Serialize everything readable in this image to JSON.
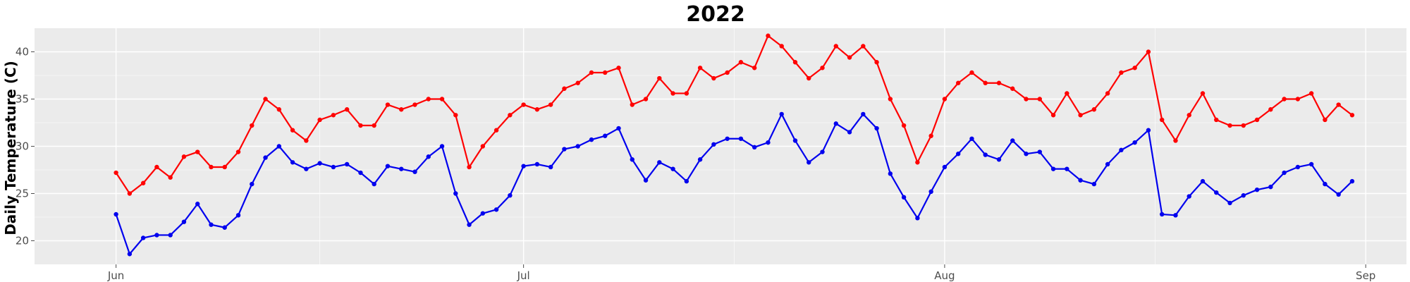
{
  "chart_data": {
    "type": "line",
    "title": "2022",
    "xlabel": "",
    "ylabel": "Daily Temperature (C)",
    "x_start": "2022-06-01",
    "x_ticks": [
      {
        "date": "2022-06-01",
        "label": "Jun"
      },
      {
        "date": "2022-07-01",
        "label": "Jul"
      },
      {
        "date": "2022-08-01",
        "label": "Aug"
      },
      {
        "date": "2022-09-01",
        "label": "Sep"
      }
    ],
    "xlim": [
      "2022-05-26",
      "2022-09-04"
    ],
    "ylim": [
      17.5,
      42.5
    ],
    "y_ticks": [
      20,
      25,
      30,
      35,
      40
    ],
    "grid": true,
    "legend": "none",
    "series": [
      {
        "color": "#ff0000",
        "values": [
          27.2,
          25.0,
          26.1,
          27.8,
          26.7,
          28.9,
          29.4,
          27.8,
          27.8,
          29.4,
          32.2,
          35.0,
          33.9,
          31.7,
          30.6,
          32.8,
          33.3,
          33.9,
          32.2,
          32.2,
          34.4,
          33.9,
          34.4,
          35.0,
          35.0,
          33.3,
          27.8,
          30.0,
          31.7,
          33.3,
          34.4,
          33.9,
          34.4,
          36.1,
          36.7,
          37.8,
          37.8,
          38.3,
          34.4,
          35.0,
          37.2,
          35.6,
          35.6,
          38.3,
          37.2,
          37.8,
          38.9,
          38.3,
          41.7,
          40.6,
          38.9,
          37.2,
          38.3,
          40.6,
          39.4,
          40.6,
          38.9,
          35.0,
          32.2,
          28.3,
          31.1,
          35.0,
          36.7,
          37.8,
          36.7,
          36.7,
          36.1,
          35.0,
          35.0,
          33.3,
          35.6,
          33.3,
          33.9,
          35.6,
          37.8,
          38.3,
          40.0,
          32.8,
          30.6,
          33.3,
          35.6,
          32.8,
          32.2,
          32.2,
          32.8,
          33.9,
          35.0,
          35.0,
          35.6,
          32.8,
          34.4,
          33.3
        ]
      },
      {
        "color": "#0000ee",
        "values": [
          22.8,
          18.6,
          20.3,
          20.6,
          20.6,
          22.0,
          23.9,
          21.7,
          21.4,
          22.7,
          26.0,
          28.8,
          30.0,
          28.3,
          27.6,
          28.2,
          27.8,
          28.1,
          27.2,
          26.0,
          27.9,
          27.6,
          27.3,
          28.9,
          30.0,
          25.0,
          21.7,
          22.9,
          23.3,
          24.8,
          27.9,
          28.1,
          27.8,
          29.7,
          30.0,
          30.7,
          31.1,
          31.9,
          28.6,
          26.4,
          28.3,
          27.6,
          26.3,
          28.6,
          30.2,
          30.8,
          30.8,
          29.9,
          30.4,
          33.4,
          30.6,
          28.3,
          29.4,
          32.4,
          31.5,
          33.4,
          31.9,
          27.1,
          24.6,
          22.4,
          25.2,
          27.8,
          29.2,
          30.8,
          29.1,
          28.6,
          30.6,
          29.2,
          29.4,
          27.6,
          27.6,
          26.4,
          26.0,
          28.1,
          29.6,
          30.4,
          31.7,
          22.8,
          22.7,
          24.7,
          26.3,
          25.1,
          24.0,
          24.8,
          25.4,
          25.7,
          27.2,
          27.8,
          28.1,
          26.0,
          24.9,
          26.3
        ]
      }
    ]
  },
  "colors": {
    "panel_background": "#ebebeb",
    "grid_major": "#ffffff",
    "high_series": "#ff0000",
    "low_series": "#0000ee"
  }
}
